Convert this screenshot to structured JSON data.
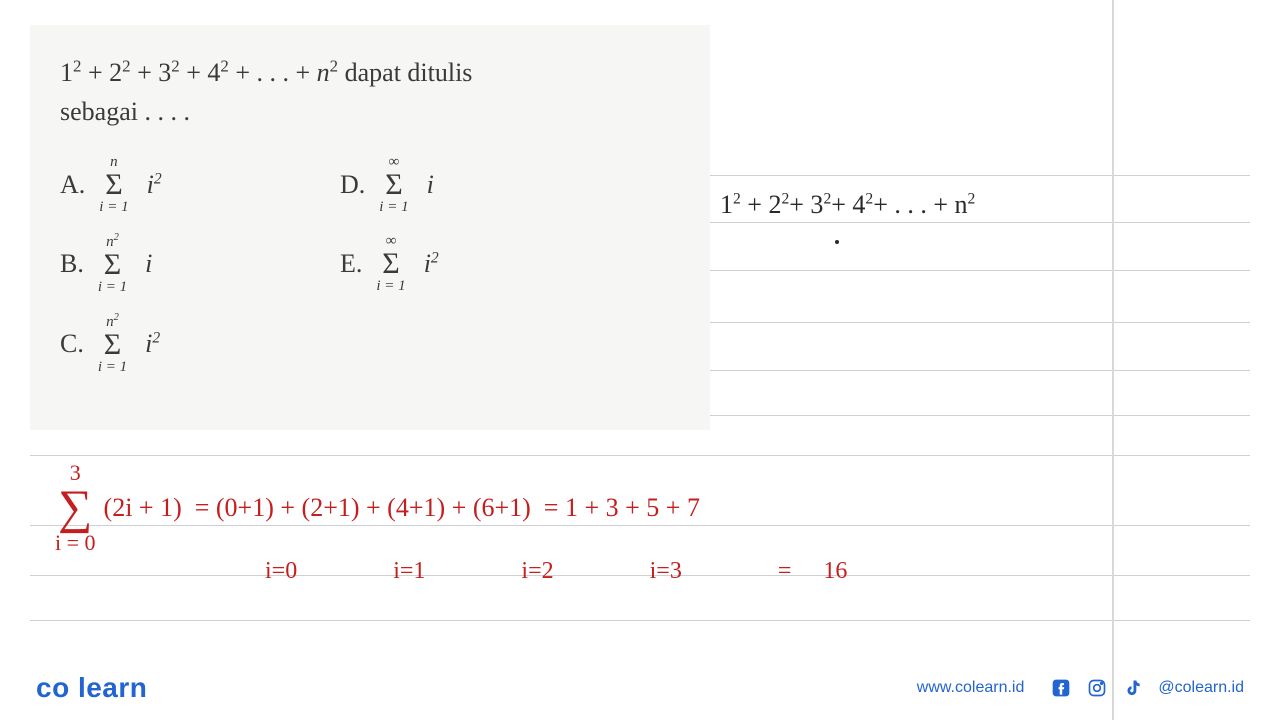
{
  "question": {
    "line1_html": "1<span class='sup'>2</span> + 2<span class='sup'>2</span> + 3<span class='sup'>2</span> + 4<span class='sup'>2</span> + . . . + <i>n</i><span class='sup'>2</span> dapat ditulis",
    "line2": "sebagai . . . ."
  },
  "options": [
    {
      "label": "A.",
      "top": "n",
      "bottom": "i = 1",
      "expr": "i<span class='sup' style='font-size:0.6em'>2</span>"
    },
    {
      "label": "D.",
      "top": "∞",
      "bottom": "i = 1",
      "expr": "i"
    },
    {
      "label": "B.",
      "top": "n<span style='font-size:0.7em;vertical-align:super'>2</span>",
      "bottom": "i = 1",
      "expr": "i"
    },
    {
      "label": "E.",
      "top": "∞",
      "bottom": "i = 1",
      "expr": "i<span class='sup' style='font-size:0.6em'>2</span>"
    },
    {
      "label": "C.",
      "top": "n<span style='font-size:0.7em;vertical-align:super'>2</span>",
      "bottom": "i = 1",
      "expr": "i<span class='sup' style='font-size:0.6em'>2</span>"
    }
  ],
  "handwritten_top": "1<span class='hw-sup'>2</span> + 2<span class='hw-sup'>2</span>+ 3<span class='hw-sup'>2</span>+ 4<span class='hw-sup'>2</span>+ . . . + n<span class='hw-sup'>2</span>",
  "red": {
    "sigma_top": "3",
    "sigma_bot": "i = 0",
    "line1": "(2i + 1)&nbsp; = (0+1) + (2+1) + (4+1) + (6+1)&nbsp; = 1 + 3 + 5 + 7",
    "line2": "i=0&nbsp;&nbsp; i=1&nbsp;&nbsp; i=2&nbsp;&nbsp; i=3&nbsp;&nbsp; =&nbsp;16"
  },
  "hlines_y": [
    175,
    222,
    270,
    322,
    370,
    415,
    455,
    525,
    575,
    620
  ],
  "footer": {
    "logo": "co learn",
    "url": "www.colearn.id",
    "handle": "@colearn.id"
  },
  "colors": {
    "question_bg": "#f6f6f4",
    "red": "#c41e1e",
    "brand": "#2264d1",
    "line": "#d0d0d0"
  }
}
